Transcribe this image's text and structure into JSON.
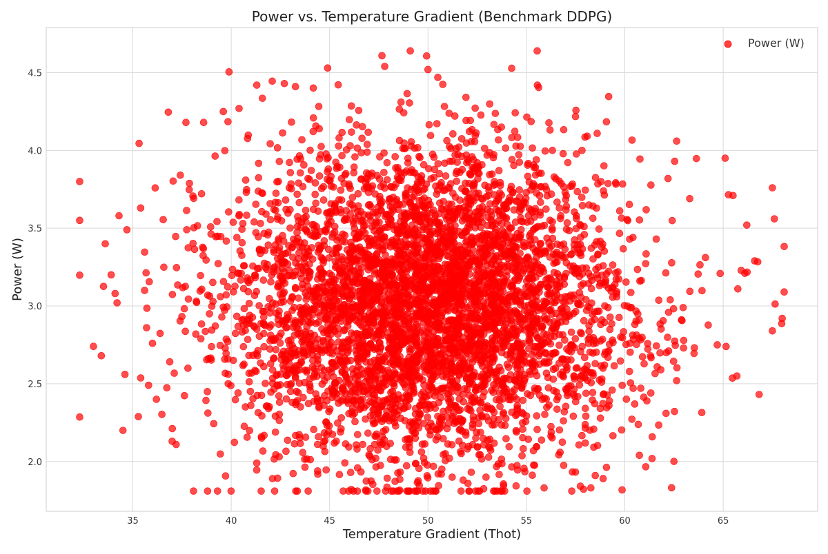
{
  "chart_data": {
    "type": "scatter",
    "title": "Power vs. Temperature Gradient (Benchmark DDPG)",
    "xlabel": "Temperature Gradient (Thot)",
    "ylabel": "Power (W)",
    "xlim": [
      30.6,
      69.8
    ],
    "ylim": [
      1.68,
      4.79
    ],
    "xticks": [
      35,
      40,
      45,
      50,
      55,
      60,
      65
    ],
    "yticks": [
      2.0,
      2.5,
      3.0,
      3.5,
      4.0,
      4.5
    ],
    "xtick_labels": [
      "35",
      "40",
      "45",
      "50",
      "55",
      "60",
      "65"
    ],
    "ytick_labels": [
      "2.0",
      "2.5",
      "3.0",
      "3.5",
      "4.0",
      "4.5"
    ],
    "grid": true,
    "legend_position": "top-right",
    "series": [
      {
        "name": "Power (W)",
        "color": "#ff0000",
        "marker": "circle",
        "alpha": 0.7,
        "distribution": {
          "count": 5000,
          "x_mean": 50,
          "x_std": 5,
          "y_mean": 3.0,
          "y_std": 0.5,
          "x_range": [
            32.3,
            68.1
          ],
          "y_range": [
            1.81,
            4.64
          ]
        },
        "points": [
          [
            32.3,
            3.8
          ],
          [
            33.0,
            2.74
          ],
          [
            33.4,
            2.68
          ],
          [
            33.6,
            3.4
          ],
          [
            33.9,
            3.2
          ],
          [
            34.1,
            3.08
          ],
          [
            34.2,
            3.02
          ],
          [
            34.3,
            3.58
          ],
          [
            34.5,
            2.2
          ],
          [
            34.6,
            2.56
          ],
          [
            34.7,
            3.49
          ],
          [
            35.4,
            3.63
          ],
          [
            35.6,
            3.1
          ],
          [
            35.7,
            2.86
          ],
          [
            35.8,
            2.49
          ],
          [
            36.0,
            2.76
          ],
          [
            36.2,
            2.4
          ],
          [
            37.0,
            2.13
          ],
          [
            37.7,
            4.18
          ],
          [
            37.8,
            2.6
          ],
          [
            38.6,
            4.18
          ],
          [
            39.6,
            4.25
          ],
          [
            40.4,
            4.27
          ],
          [
            41.3,
            4.42
          ],
          [
            41.3,
            1.99
          ],
          [
            42.1,
            1.89
          ],
          [
            42.7,
            4.43
          ],
          [
            44.9,
            4.53
          ],
          [
            46.1,
            1.82
          ],
          [
            47.8,
            4.54
          ],
          [
            49.1,
            4.64
          ],
          [
            50.0,
            4.52
          ],
          [
            50.5,
            4.47
          ],
          [
            52.1,
            1.81
          ],
          [
            55.9,
            1.83
          ],
          [
            58.5,
            1.91
          ],
          [
            58.9,
            1.89
          ],
          [
            63.3,
            3.69
          ],
          [
            64.7,
            2.75
          ],
          [
            65.1,
            3.95
          ],
          [
            65.5,
            3.71
          ],
          [
            65.7,
            2.55
          ],
          [
            66.1,
            3.21
          ],
          [
            66.2,
            3.52
          ],
          [
            66.6,
            3.29
          ],
          [
            67.5,
            3.76
          ],
          [
            67.5,
            2.84
          ],
          [
            67.6,
            3.56
          ],
          [
            68.0,
            2.92
          ],
          [
            68.1,
            3.09
          ]
        ]
      }
    ]
  }
}
